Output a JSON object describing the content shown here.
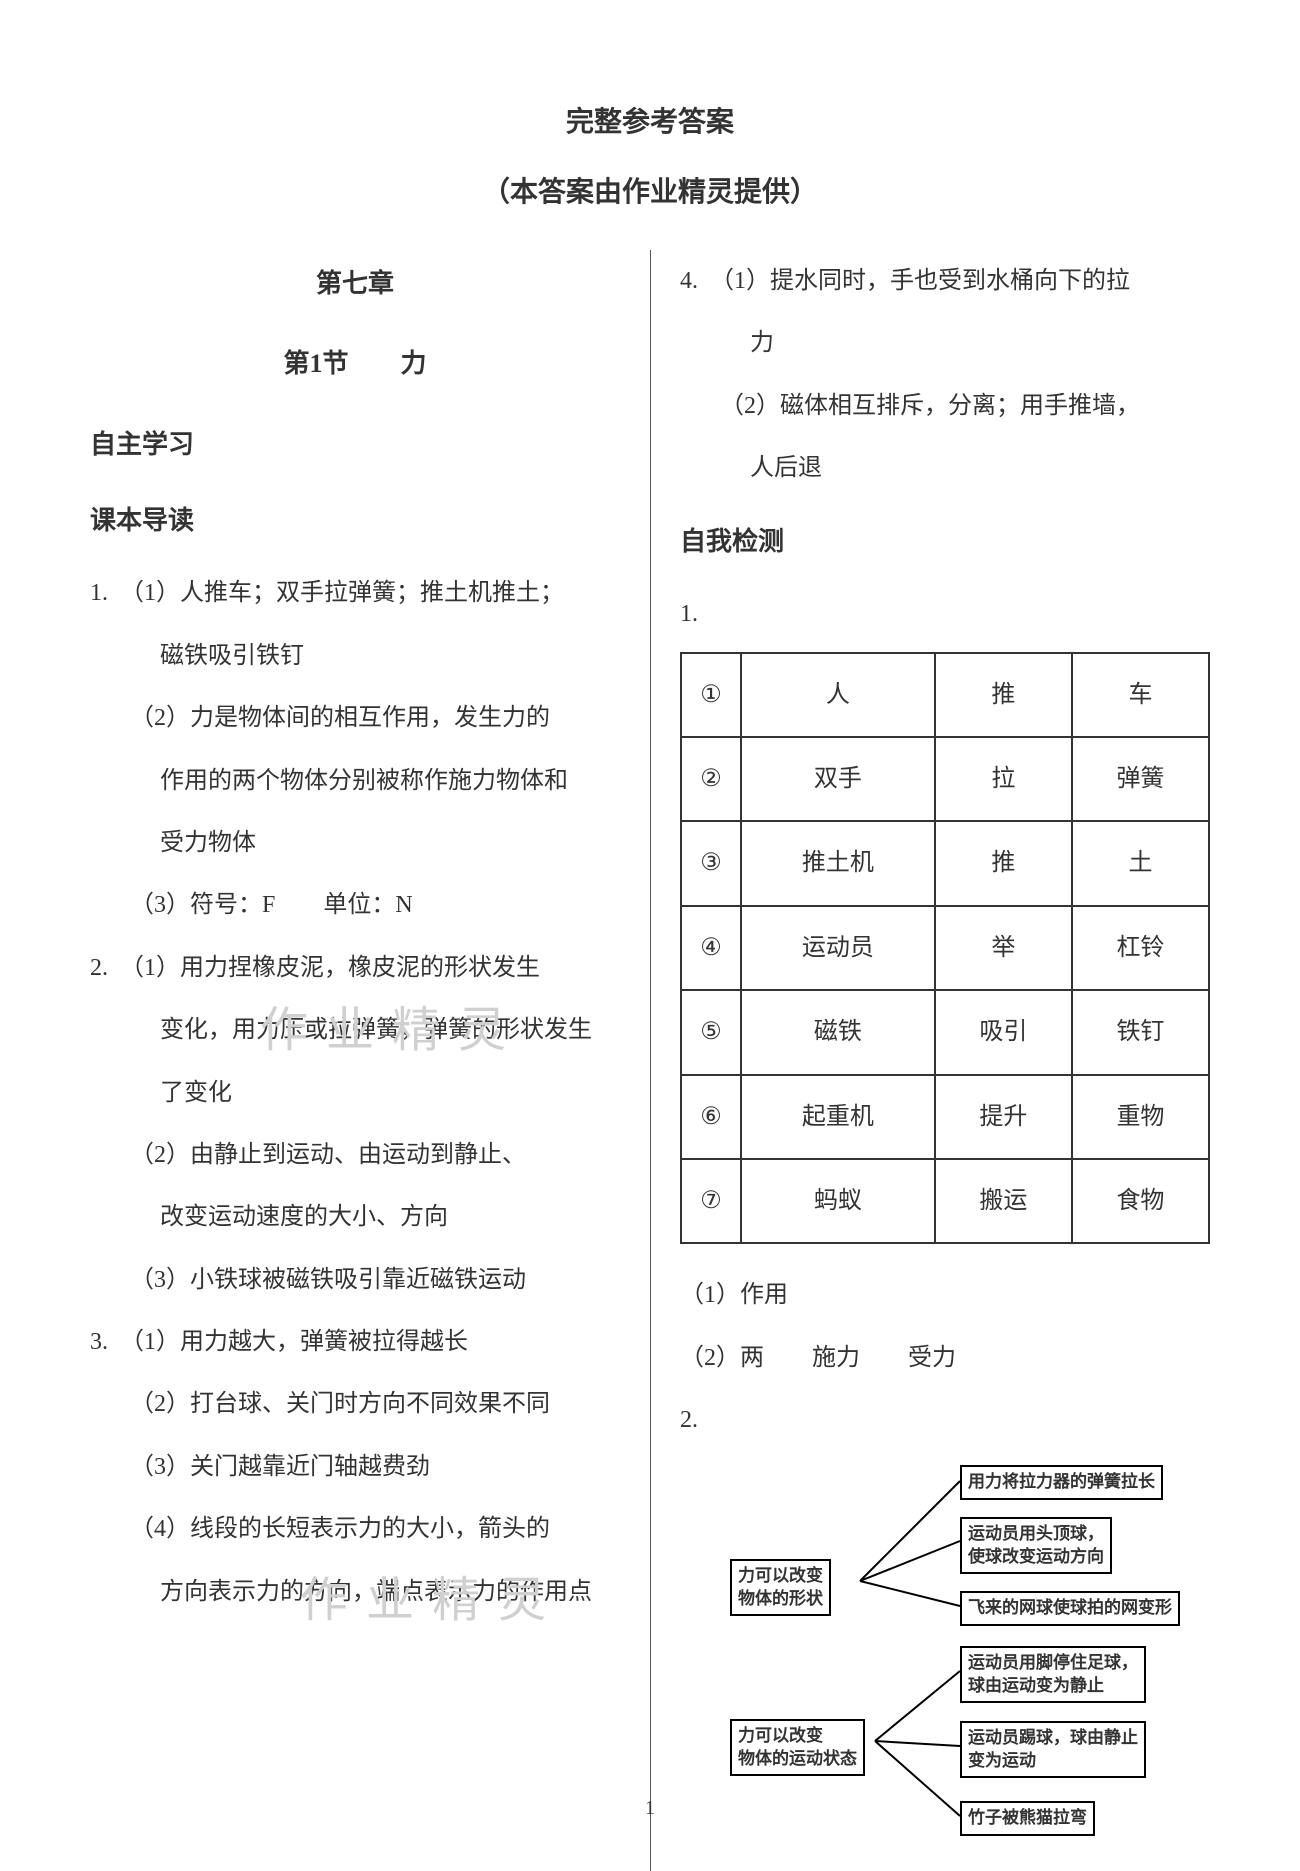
{
  "titles": {
    "main": "完整参考答案",
    "sub": "（本答案由作业精灵提供）",
    "chapter": "第七章",
    "section": "第1节　　力"
  },
  "left": {
    "h1": "自主学习",
    "h2": "课本导读",
    "q1_line1": "1.　（1）人推车；双手拉弹簧；推土机推土；",
    "q1_line2": "磁铁吸引铁钉",
    "q1_2a": "（2）力是物体间的相互作用，发生力的",
    "q1_2b": "作用的两个物体分别被称作施力物体和",
    "q1_2c": "受力物体",
    "q1_3": "（3）符号：F　　单位：N",
    "q2_1a": "2.　（1）用力捏橡皮泥，橡皮泥的形状发生",
    "q2_1b": "变化，用力压或拉弹簧，弹簧的形状发生",
    "q2_1c": "了变化",
    "q2_2a": "（2）由静止到运动、由运动到静止、",
    "q2_2b": "改变运动速度的大小、方向",
    "q2_3": "（3）小铁球被磁铁吸引靠近磁铁运动",
    "q3_1": "3.　（1）用力越大，弹簧被拉得越长",
    "q3_2": "（2）打台球、关门时方向不同效果不同",
    "q3_3": "（3）关门越靠近门轴越费劲",
    "q3_4a": "（4）线段的长短表示力的大小，箭头的",
    "q3_4b": "方向表示力的方向，端点表示力的作用点"
  },
  "right": {
    "q4_1a": "4.　（1）提水同时，手也受到水桶向下的拉",
    "q4_1b": "力",
    "q4_2a": "（2）磁体相互排斥，分离；用手推墙，",
    "q4_2b": "人后退",
    "h3": "自我检测",
    "tnum": "1.",
    "table": {
      "rows": [
        [
          "①",
          "人",
          "推",
          "车"
        ],
        [
          "②",
          "双手",
          "拉",
          "弹簧"
        ],
        [
          "③",
          "推土机",
          "推",
          "土"
        ],
        [
          "④",
          "运动员",
          "举",
          "杠铃"
        ],
        [
          "⑤",
          "磁铁",
          "吸引",
          "铁钉"
        ],
        [
          "⑥",
          "起重机",
          "提升",
          "重物"
        ],
        [
          "⑦",
          "蚂蚁",
          "搬运",
          "食物"
        ]
      ]
    },
    "after1": "（1）作用",
    "after2": "（2）两　　施力　　受力",
    "q2": "2.",
    "diagram": {
      "center1a": "力可以改变",
      "center1b": "物体的形状",
      "center2a": "力可以改变",
      "center2b": "物体的运动状态",
      "r1": "用力将拉力器的弹簧拉长",
      "r2a": "运动员用头顶球，",
      "r2b": "使球改变运动方向",
      "r3": "飞来的网球使球拍的网变形",
      "r4a": "运动员用脚停住足球，",
      "r4b": "球由运动变为静止",
      "r5a": "运动员踢球，球由静止",
      "r5b": "变为运动",
      "r6": "竹子被熊猫拉弯"
    }
  },
  "watermarks": {
    "wm1": "作业精灵",
    "wm2": "作业精灵"
  },
  "pagenum": "1",
  "colors": {
    "text": "#333333",
    "border": "#333333",
    "bg": "#ffffff",
    "watermark": "#d0d0d0"
  }
}
